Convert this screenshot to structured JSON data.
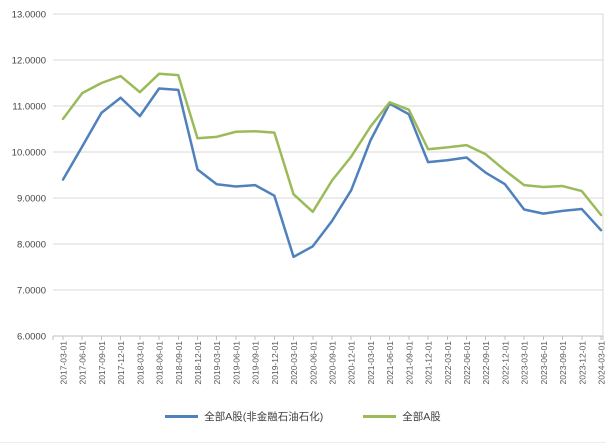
{
  "chart_data": {
    "type": "line",
    "title": "",
    "xlabel": "",
    "ylabel": "",
    "x": [
      "2017-03-01",
      "2017-06-01",
      "2017-09-01",
      "2017-12-01",
      "2018-03-01",
      "2018-06-01",
      "2018-09-01",
      "2018-12-01",
      "2019-03-01",
      "2019-06-01",
      "2019-09-01",
      "2019-12-01",
      "2020-03-01",
      "2020-06-01",
      "2020-09-01",
      "2020-12-01",
      "2021-03-01",
      "2021-06-01",
      "2021-09-01",
      "2021-12-01",
      "2022-03-01",
      "2022-06-01",
      "2022-09-01",
      "2022-12-01",
      "2023-03-01",
      "2023-06-01",
      "2023-09-01",
      "2023-12-01",
      "2024-03-01"
    ],
    "series": [
      {
        "name": "全部A股(非金融石油石化)",
        "color": "#4F81BD",
        "values": [
          9.4,
          10.12,
          10.85,
          11.18,
          10.78,
          11.38,
          11.35,
          9.62,
          9.3,
          9.25,
          9.28,
          9.05,
          7.72,
          7.95,
          8.5,
          9.17,
          10.25,
          11.05,
          10.82,
          9.78,
          9.82,
          9.88,
          9.55,
          9.3,
          8.75,
          8.66,
          8.72,
          8.76,
          8.3
        ]
      },
      {
        "name": "全部A股",
        "color": "#9BBB59",
        "values": [
          10.72,
          11.28,
          11.5,
          11.65,
          11.3,
          11.7,
          11.67,
          10.3,
          10.33,
          10.44,
          10.45,
          10.42,
          9.08,
          8.7,
          9.38,
          9.9,
          10.55,
          11.08,
          10.92,
          10.06,
          10.1,
          10.15,
          9.95,
          9.6,
          9.28,
          9.24,
          9.26,
          9.15,
          8.63
        ]
      }
    ],
    "ylim": [
      6,
      13
    ],
    "y_tick_labels": [
      "6.0000",
      "7.0000",
      "8.0000",
      "9.0000",
      "10.0000",
      "11.0000",
      "12.0000",
      "13.0000"
    ],
    "grid": true,
    "legend_position": "bottom",
    "colors": {
      "gridline": "#d9d9d9",
      "axis": "#bfbfbf",
      "y_label_text": "#444444",
      "x_label_text": "#555555",
      "legend_text": "#404040",
      "background": "#ffffff"
    }
  }
}
